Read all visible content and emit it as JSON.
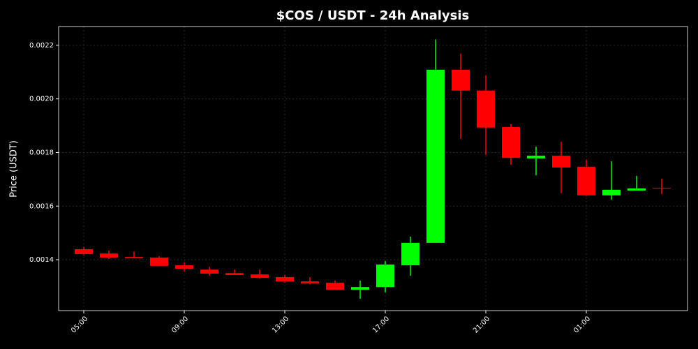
{
  "chart_data": {
    "type": "candlestick",
    "title": "$COS / USDT - 24h Analysis",
    "y_label": "Price (USDT)",
    "categories": [
      "05:00",
      null,
      null,
      null,
      "09:00",
      null,
      null,
      null,
      "13:00",
      null,
      null,
      null,
      "17:00",
      null,
      null,
      null,
      "21:00",
      null,
      null,
      null,
      "01:00",
      null,
      null,
      null
    ],
    "open": [
      0.001439,
      0.001423,
      0.00141,
      0.001408,
      0.001379,
      0.001363,
      0.00135,
      0.001345,
      0.001335,
      0.001319,
      0.001314,
      0.001288,
      0.001298,
      0.001379,
      0.001463,
      0.002109,
      0.002031,
      0.001895,
      0.001778,
      0.001788,
      0.001747,
      0.00164,
      0.001658,
      0.001668
    ],
    "high": [
      0.001447,
      0.001434,
      0.001429,
      0.001413,
      0.00139,
      0.001374,
      0.001363,
      0.001363,
      0.001343,
      0.001335,
      0.001322,
      0.001322,
      0.001395,
      0.001486,
      0.002221,
      0.002169,
      0.002088,
      0.001906,
      0.001822,
      0.00184,
      0.001773,
      0.001767,
      0.001713,
      0.001702
    ],
    "low": [
      0.001416,
      0.001403,
      0.001405,
      0.001377,
      0.001356,
      0.00134,
      0.001343,
      0.00133,
      0.001314,
      0.001309,
      0.001288,
      0.001254,
      0.001278,
      0.00134,
      0.001463,
      0.001851,
      0.001791,
      0.001754,
      0.001715,
      0.001648,
      0.001637,
      0.001624,
      0.001658,
      0.001645
    ],
    "close": [
      0.001421,
      0.001408,
      0.001405,
      0.001377,
      0.001366,
      0.001348,
      0.001343,
      0.001332,
      0.001319,
      0.001311,
      0.001288,
      0.001298,
      0.001382,
      0.001463,
      0.002109,
      0.002031,
      0.001893,
      0.00178,
      0.001788,
      0.001744,
      0.00164,
      0.001661,
      0.001666,
      0.001666
    ],
    "up_color": "#00ff00",
    "down_color": "#ff0000",
    "ylim": [
      0.00121,
      0.00227
    ],
    "yticks": [
      0.0014,
      0.0016,
      0.0018,
      {
        "value": 0.002,
        "label": "0.0020"
      },
      0.0022
    ],
    "grid": true
  }
}
